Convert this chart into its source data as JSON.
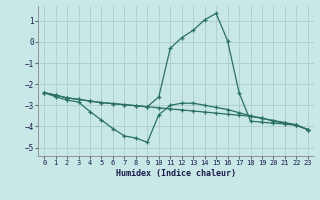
{
  "title": "",
  "xlabel": "Humidex (Indice chaleur)",
  "ylabel": "",
  "background_color": "#c8e8e8",
  "grid_color": "#afd0ce",
  "line_color": "#2a7060",
  "xlim": [
    -0.5,
    23.5
  ],
  "ylim": [
    -5.4,
    1.7
  ],
  "xticks": [
    0,
    1,
    2,
    3,
    4,
    5,
    6,
    7,
    8,
    9,
    10,
    11,
    12,
    13,
    14,
    15,
    16,
    17,
    18,
    19,
    20,
    21,
    22,
    23
  ],
  "yticks": [
    -5,
    -4,
    -3,
    -2,
    -1,
    0,
    1
  ],
  "series1_x": [
    0,
    1,
    2,
    3,
    4,
    5,
    6,
    7,
    8,
    9,
    10,
    11,
    12,
    13,
    14,
    15,
    16,
    17,
    18,
    19,
    20,
    21,
    22,
    23
  ],
  "series1_y": [
    -2.4,
    -2.6,
    -2.75,
    -2.85,
    -3.3,
    -3.7,
    -4.1,
    -4.45,
    -4.55,
    -4.75,
    -3.45,
    -3.0,
    -2.9,
    -2.9,
    -3.0,
    -3.1,
    -3.2,
    -3.35,
    -3.5,
    -3.6,
    -3.75,
    -3.85,
    -3.95,
    -4.15
  ],
  "series2_x": [
    0,
    1,
    2,
    3,
    4,
    5,
    6,
    7,
    8,
    9,
    10,
    11,
    12,
    13,
    14,
    15,
    16,
    17,
    18,
    19,
    20,
    21,
    22,
    23
  ],
  "series2_y": [
    -2.4,
    -2.52,
    -2.65,
    -2.72,
    -2.8,
    -2.87,
    -2.92,
    -2.97,
    -3.02,
    -3.07,
    -3.12,
    -3.17,
    -3.22,
    -3.27,
    -3.32,
    -3.37,
    -3.42,
    -3.47,
    -3.52,
    -3.62,
    -3.72,
    -3.82,
    -3.92,
    -4.15
  ],
  "series3_x": [
    0,
    1,
    2,
    3,
    4,
    5,
    6,
    7,
    8,
    9,
    10,
    11,
    12,
    13,
    14,
    15,
    16,
    17,
    18,
    19,
    20,
    21,
    22,
    23
  ],
  "series3_y": [
    -2.4,
    -2.52,
    -2.65,
    -2.72,
    -2.8,
    -2.87,
    -2.92,
    -2.97,
    -3.02,
    -3.07,
    -2.6,
    -0.3,
    0.2,
    0.55,
    1.05,
    1.35,
    0.05,
    -2.4,
    -3.75,
    -3.8,
    -3.85,
    -3.88,
    -3.95,
    -4.15
  ]
}
